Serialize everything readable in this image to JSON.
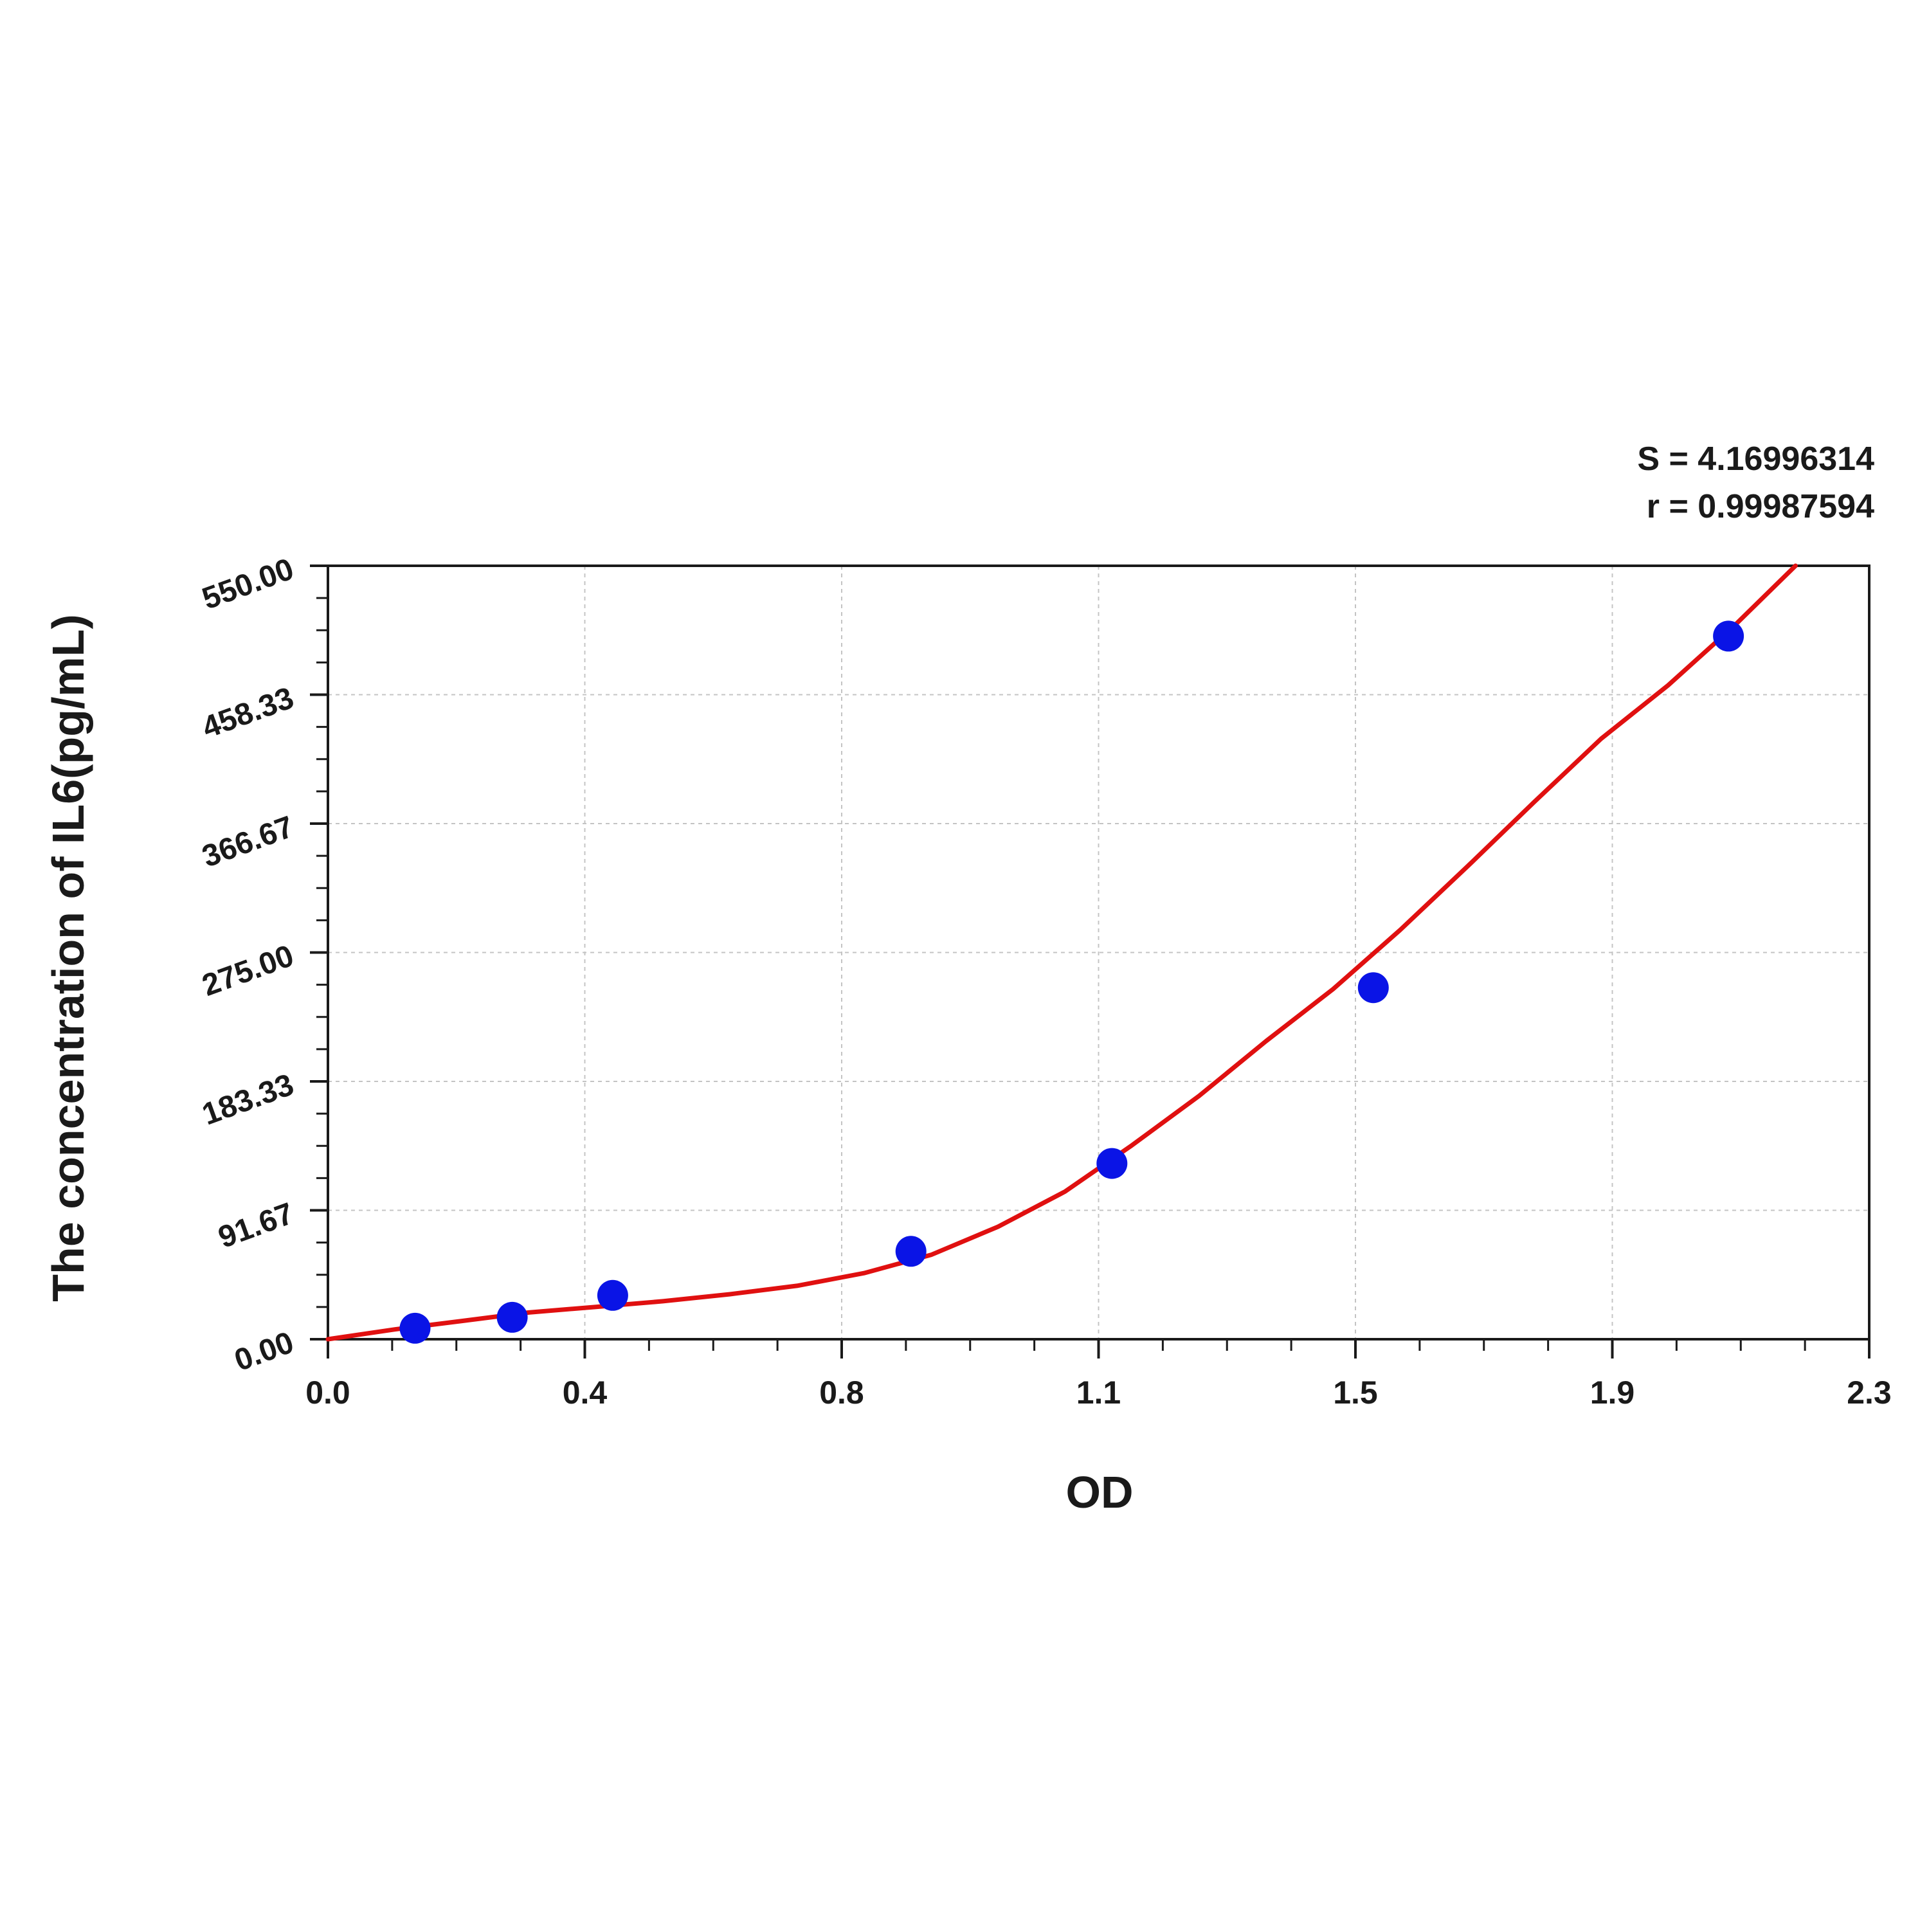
{
  "chart_data": {
    "type": "scatter",
    "xlabel": "OD",
    "ylabel": "The concentration of IL6(pg/mL)",
    "stats": [
      "S = 4.16996314",
      "r = 0.99987594"
    ],
    "xlim": [
      0.0,
      2.3
    ],
    "ylim": [
      0.0,
      550.0
    ],
    "x_ticks": [
      "0.0",
      "0.4",
      "0.8",
      "1.1",
      "1.5",
      "1.9",
      "2.3"
    ],
    "y_ticks": [
      "0.00",
      "91.67",
      "183.33",
      "275.00",
      "366.67",
      "458.33",
      "550.00"
    ],
    "grid": true,
    "series": [
      {
        "kind": "points",
        "color": "#0a14e6",
        "x": [
          0.13,
          0.275,
          0.425,
          0.87,
          1.17,
          1.56,
          2.09
        ],
        "y": [
          7.8,
          15.6,
          31.2,
          62.5,
          125,
          250,
          500
        ]
      },
      {
        "kind": "fit",
        "color": "#e01010",
        "x": [
          0.0,
          0.1,
          0.2,
          0.3,
          0.4,
          0.5,
          0.6,
          0.7,
          0.8,
          0.9,
          1.0,
          1.1,
          1.2,
          1.3,
          1.4,
          1.5,
          1.6,
          1.7,
          1.8,
          1.9,
          2.0,
          2.1,
          2.19
        ],
        "y": [
          0,
          7,
          13,
          19,
          23,
          27,
          32,
          38,
          47,
          60,
          80,
          105,
          138,
          173,
          212,
          249,
          291,
          336,
          382,
          427,
          465,
          508,
          550
        ]
      }
    ]
  }
}
